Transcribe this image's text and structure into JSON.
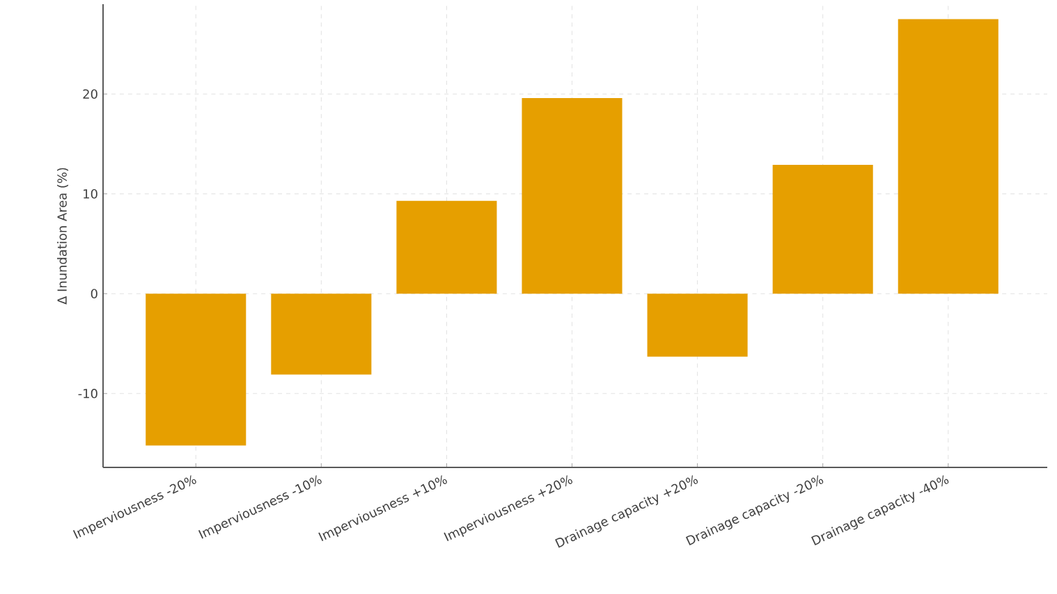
{
  "chart_data": {
    "type": "bar",
    "ylabel": "Δ Inundation Area (%)",
    "categories": [
      "Imperviousness -20%",
      "Imperviousness -10%",
      "Imperviousness +10%",
      "Imperviousness +20%",
      "Drainage capacity +20%",
      "Drainage capacity -20%",
      "Drainage capacity -40%"
    ],
    "values": [
      -15.2,
      -8.1,
      9.3,
      19.6,
      -6.3,
      12.9,
      27.5
    ],
    "color": "#e69f00",
    "ylim": [
      -17.4,
      29
    ],
    "yticks": [
      -10,
      0,
      10,
      20
    ],
    "grid": true
  }
}
